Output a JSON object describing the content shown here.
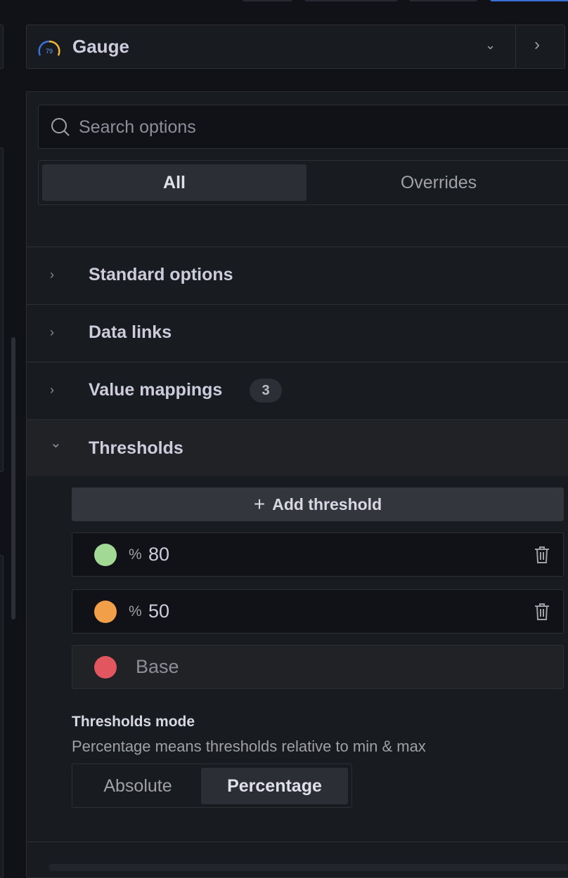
{
  "viz_picker": {
    "name": "Gauge",
    "icon": "gauge-icon",
    "gauge_value": "79"
  },
  "search": {
    "placeholder": "Search options"
  },
  "tabs": [
    {
      "label": "All",
      "active": true
    },
    {
      "label": "Overrides",
      "active": false
    }
  ],
  "sections": [
    {
      "label": "Standard options",
      "expanded": false
    },
    {
      "label": "Data links",
      "expanded": false
    },
    {
      "label": "Value mappings",
      "expanded": false,
      "badge": "3"
    },
    {
      "label": "Thresholds",
      "expanded": true
    }
  ],
  "thresholds": {
    "add_label": "Add threshold",
    "steps": [
      {
        "unit": "%",
        "value": "80",
        "color": "#a1d995"
      },
      {
        "unit": "%",
        "value": "50",
        "color": "#f29f4a"
      },
      {
        "value": "Base",
        "color": "#e25660"
      }
    ],
    "mode_label": "Thresholds mode",
    "mode_description": "Percentage means thresholds relative to min & max",
    "mode_options": [
      {
        "label": "Absolute",
        "selected": false
      },
      {
        "label": "Percentage",
        "selected": true
      }
    ]
  }
}
